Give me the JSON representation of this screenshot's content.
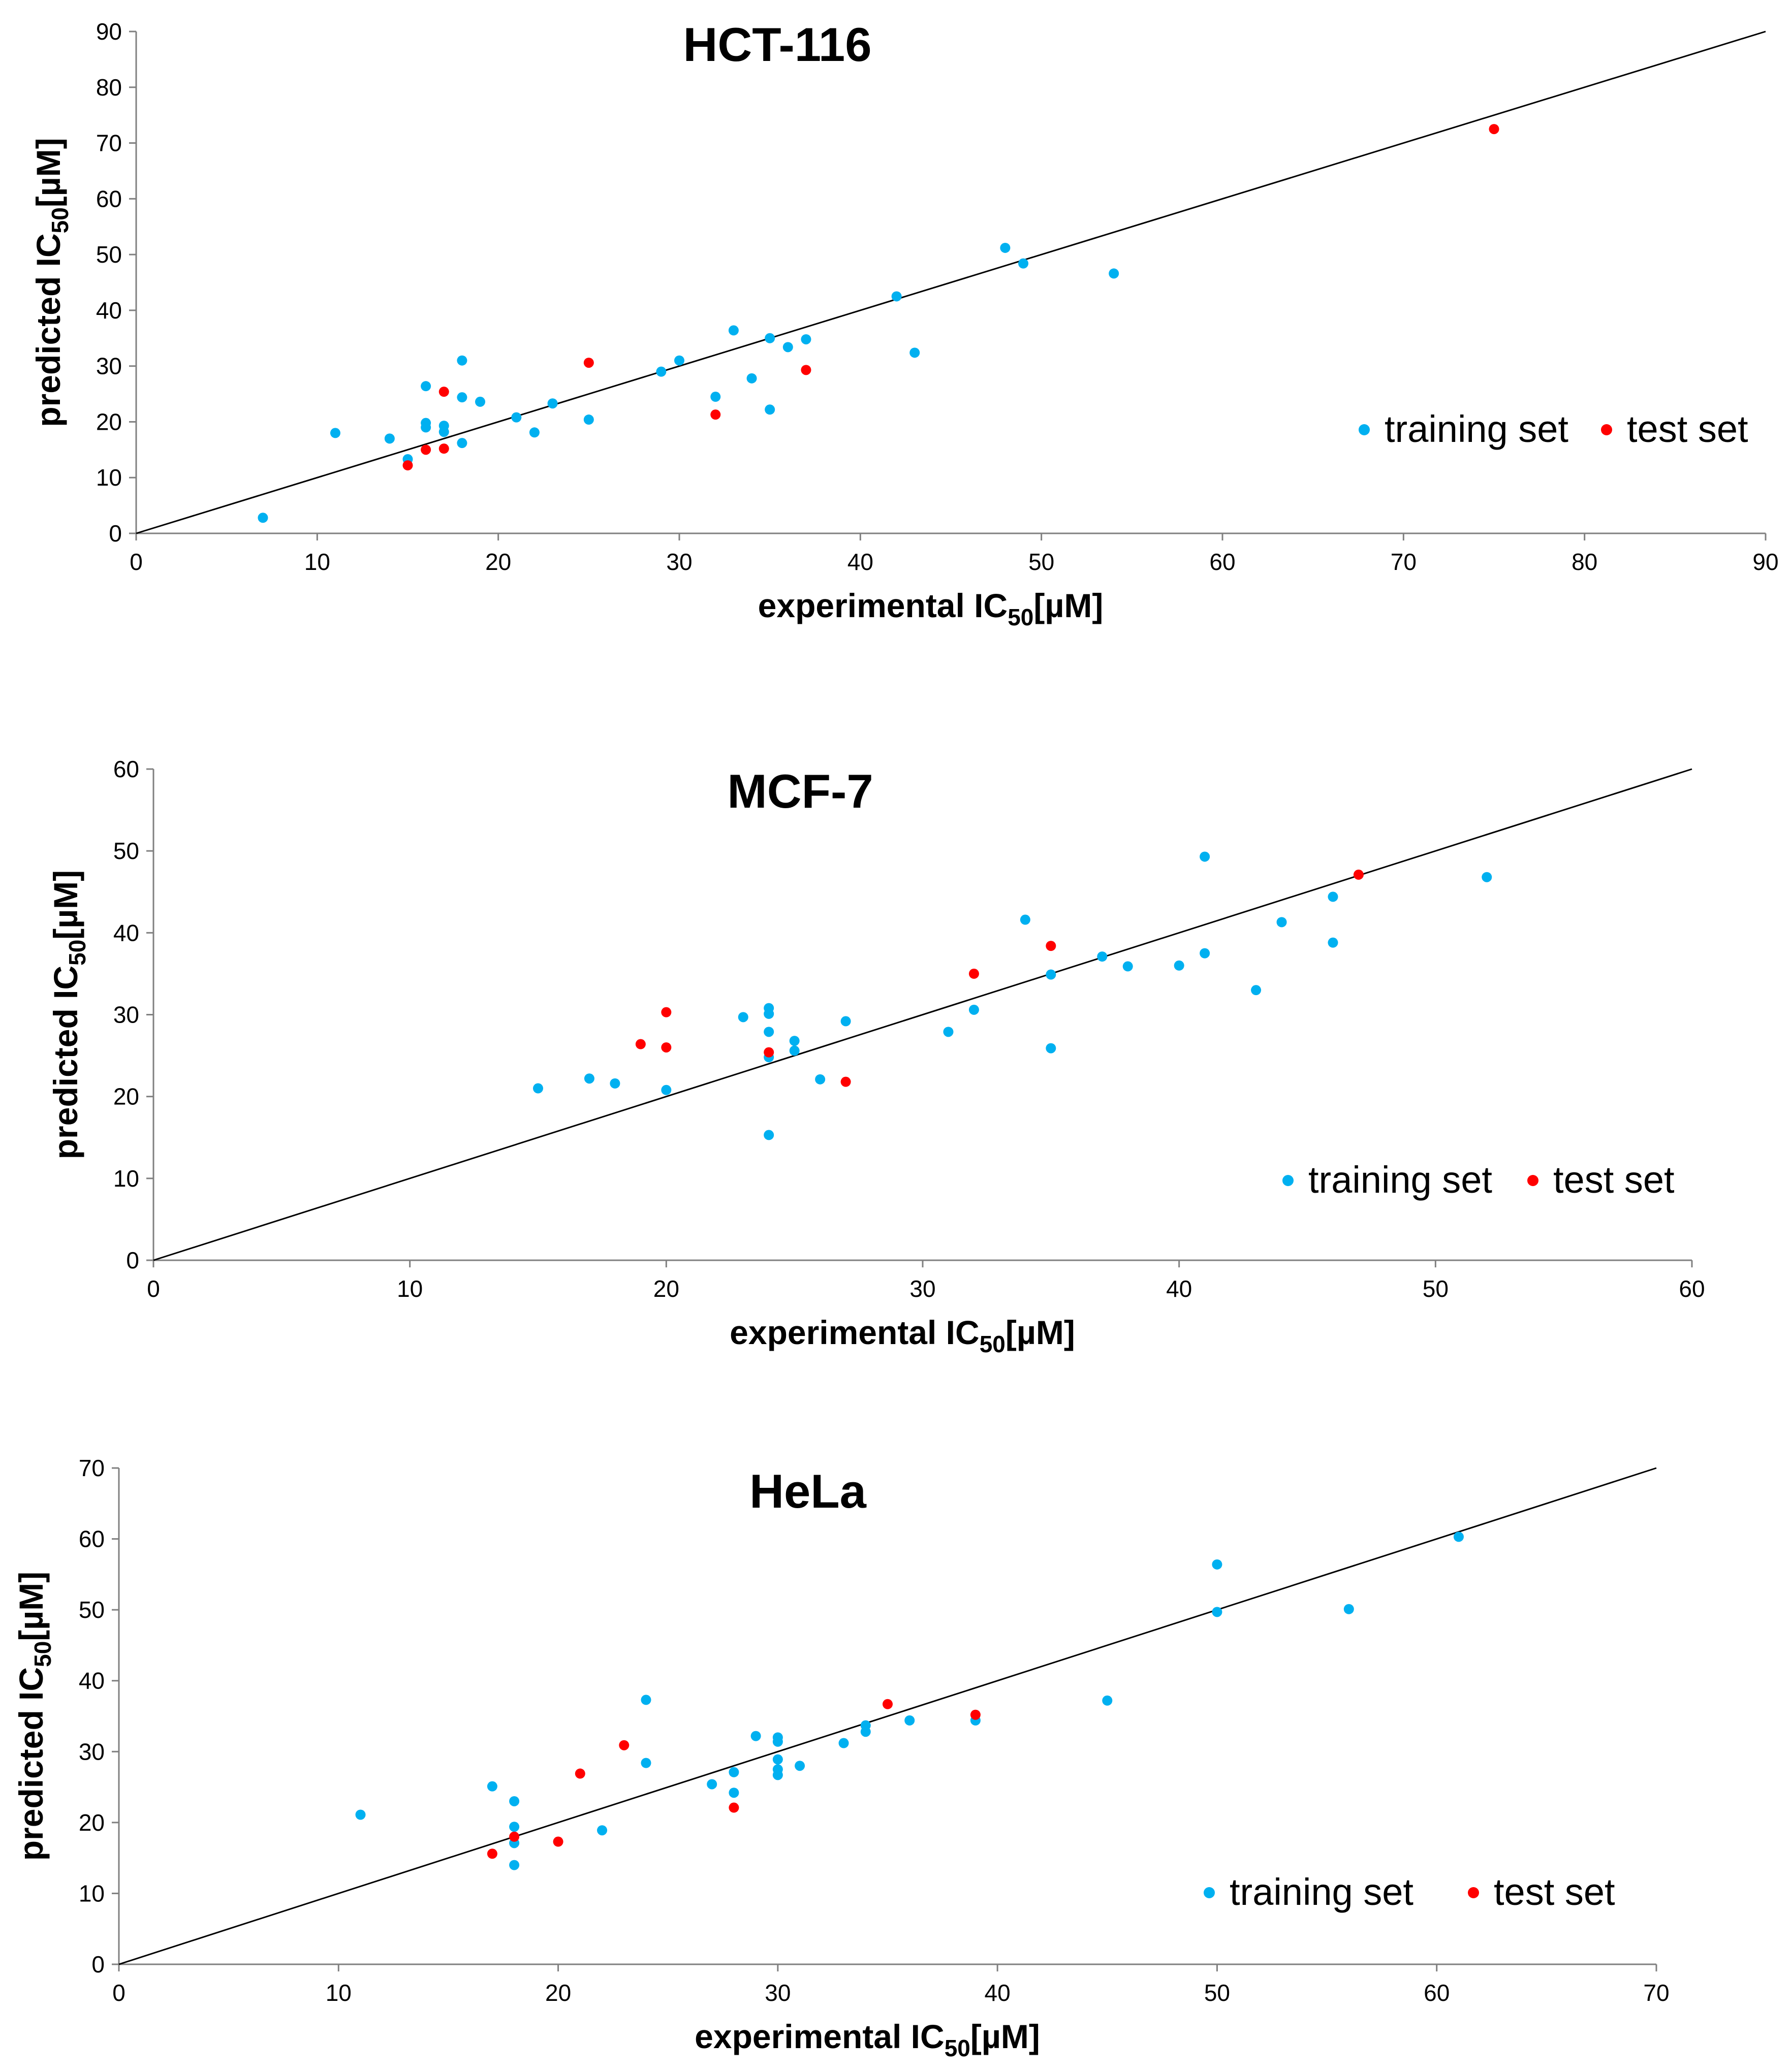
{
  "colors": {
    "training": "#00B0F0",
    "test": "#FF0000",
    "line": "#000000",
    "axis": "#808080"
  },
  "chart_data": [
    {
      "type": "scatter",
      "title": "HCT-116",
      "xlabel": "experimental IC50[µM]",
      "ylabel": "predicted IC50[µM]",
      "xlabel_parts": {
        "pre": "experimental IC",
        "sub": "50",
        "post": "[µM]"
      },
      "ylabel_parts": {
        "pre": "predicted IC",
        "sub": "50",
        "post": "[µM]"
      },
      "xlim": [
        0,
        90
      ],
      "ylim": [
        0,
        90
      ],
      "xticks": [
        0,
        10,
        20,
        30,
        40,
        50,
        60,
        70,
        80,
        90
      ],
      "yticks": [
        0,
        10,
        20,
        30,
        40,
        50,
        60,
        70,
        80,
        90
      ],
      "reference_line": [
        [
          0,
          0
        ],
        [
          90,
          90
        ]
      ],
      "legend": [
        "training set",
        "test set"
      ],
      "series": [
        {
          "name": "training set",
          "points": [
            [
              7,
              2.8
            ],
            [
              11,
              18
            ],
            [
              14,
              17
            ],
            [
              15,
              13.3
            ],
            [
              16,
              26.4
            ],
            [
              16,
              19.8
            ],
            [
              16,
              19
            ],
            [
              17,
              19.3
            ],
            [
              17,
              18.2
            ],
            [
              18,
              31
            ],
            [
              18,
              24.4
            ],
            [
              18,
              16.2
            ],
            [
              19,
              23.6
            ],
            [
              21,
              20.8
            ],
            [
              22,
              18.1
            ],
            [
              23,
              23.3
            ],
            [
              25,
              20.4
            ],
            [
              29,
              29
            ],
            [
              30,
              31
            ],
            [
              32,
              24.5
            ],
            [
              33,
              36.4
            ],
            [
              34,
              27.8
            ],
            [
              35,
              35
            ],
            [
              35,
              22.2
            ],
            [
              36,
              33.4
            ],
            [
              37,
              34.8
            ],
            [
              42,
              42.5
            ],
            [
              43,
              32.4
            ],
            [
              48,
              51.2
            ],
            [
              49,
              48.4
            ],
            [
              54,
              46.6
            ]
          ]
        },
        {
          "name": "test set",
          "points": [
            [
              15,
              12.2
            ],
            [
              16,
              15
            ],
            [
              17,
              25.4
            ],
            [
              17,
              15.2
            ],
            [
              25,
              30.6
            ],
            [
              32,
              21.3
            ],
            [
              37,
              29.3
            ],
            [
              75,
              72.5
            ]
          ]
        }
      ]
    },
    {
      "type": "scatter",
      "title": "MCF-7",
      "xlabel": "experimental IC50[µM]",
      "ylabel": "predicted IC50[µM]",
      "xlabel_parts": {
        "pre": "experimental IC",
        "sub": "50",
        "post": "[µM]"
      },
      "ylabel_parts": {
        "pre": "predicted IC",
        "sub": "50",
        "post": "[µM]"
      },
      "xlim": [
        0,
        60
      ],
      "ylim": [
        0,
        60
      ],
      "xticks": [
        0,
        10,
        20,
        30,
        40,
        50,
        60
      ],
      "yticks": [
        0,
        10,
        20,
        30,
        40,
        50,
        60
      ],
      "reference_line": [
        [
          0,
          0
        ],
        [
          60,
          60
        ]
      ],
      "legend": [
        "training set",
        "test set"
      ],
      "series": [
        {
          "name": "training set",
          "points": [
            [
              15,
              21
            ],
            [
              17,
              22.2
            ],
            [
              18,
              21.6
            ],
            [
              20,
              20.8
            ],
            [
              23,
              29.7
            ],
            [
              24,
              30.8
            ],
            [
              24,
              30.1
            ],
            [
              24,
              27.9
            ],
            [
              24,
              24.8
            ],
            [
              24,
              15.3
            ],
            [
              25,
              26.8
            ],
            [
              25,
              25.6
            ],
            [
              26,
              22.1
            ],
            [
              27,
              29.2
            ],
            [
              31,
              27.9
            ],
            [
              32,
              30.6
            ],
            [
              34,
              41.6
            ],
            [
              35,
              34.9
            ],
            [
              35,
              25.9
            ],
            [
              37,
              37.1
            ],
            [
              38,
              35.9
            ],
            [
              40,
              36
            ],
            [
              41,
              49.3
            ],
            [
              41,
              37.5
            ],
            [
              43,
              33
            ],
            [
              44,
              41.3
            ],
            [
              46,
              44.4
            ],
            [
              46,
              38.8
            ],
            [
              52,
              46.8
            ]
          ]
        },
        {
          "name": "test set",
          "points": [
            [
              19,
              26.4
            ],
            [
              20,
              30.3
            ],
            [
              20,
              26
            ],
            [
              24,
              25.4
            ],
            [
              27,
              21.8
            ],
            [
              32,
              35
            ],
            [
              35,
              38.4
            ],
            [
              47,
              47.1
            ]
          ]
        }
      ]
    },
    {
      "type": "scatter",
      "title": "HeLa",
      "xlabel": "experimental IC50[µM]",
      "ylabel": "predicted IC50[µM]",
      "xlabel_parts": {
        "pre": "experimental IC",
        "sub": "50",
        "post": "[µM]"
      },
      "ylabel_parts": {
        "pre": "predicted IC",
        "sub": "50",
        "post": "[µM]"
      },
      "xlim": [
        0,
        70
      ],
      "ylim": [
        0,
        70
      ],
      "xticks": [
        0,
        10,
        20,
        30,
        40,
        50,
        60,
        70
      ],
      "yticks": [
        0,
        10,
        20,
        30,
        40,
        50,
        60,
        70
      ],
      "reference_line": [
        [
          0,
          0
        ],
        [
          70,
          70
        ]
      ],
      "legend": [
        "training set",
        "test set"
      ],
      "series": [
        {
          "name": "training set",
          "points": [
            [
              11,
              21.1
            ],
            [
              17,
              25.1
            ],
            [
              18,
              23
            ],
            [
              18,
              19.4
            ],
            [
              18,
              17.1
            ],
            [
              18,
              14
            ],
            [
              22,
              18.9
            ],
            [
              24,
              37.3
            ],
            [
              24,
              28.4
            ],
            [
              27,
              25.4
            ],
            [
              28,
              27.1
            ],
            [
              28,
              24.2
            ],
            [
              29,
              32.2
            ],
            [
              30,
              32
            ],
            [
              30,
              31.4
            ],
            [
              30,
              28.9
            ],
            [
              30,
              27.5
            ],
            [
              30,
              26.7
            ],
            [
              31,
              28
            ],
            [
              33,
              31.2
            ],
            [
              34,
              33.7
            ],
            [
              34,
              32.8
            ],
            [
              36,
              34.4
            ],
            [
              39,
              34.4
            ],
            [
              45,
              37.2
            ],
            [
              50,
              56.4
            ],
            [
              50,
              49.7
            ],
            [
              56,
              50.1
            ],
            [
              61,
              60.3
            ]
          ]
        },
        {
          "name": "test set",
          "points": [
            [
              17,
              15.6
            ],
            [
              18,
              18
            ],
            [
              20,
              17.3
            ],
            [
              21,
              26.9
            ],
            [
              23,
              30.9
            ],
            [
              28,
              22.1
            ],
            [
              35,
              36.7
            ],
            [
              39,
              35.2
            ]
          ]
        }
      ]
    }
  ]
}
